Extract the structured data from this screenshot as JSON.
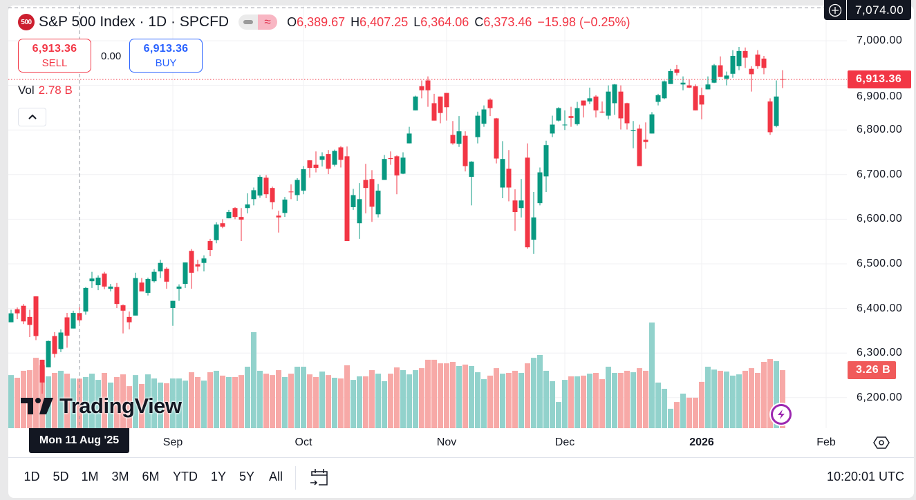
{
  "header": {
    "logo_text": "500",
    "title": "S&P 500 Index · 1D · SPCFD",
    "ohlc": [
      {
        "key": "O",
        "value": "6,389.67"
      },
      {
        "key": "H",
        "value": "6,407.25"
      },
      {
        "key": "L",
        "value": "6,364.06"
      },
      {
        "key": "C",
        "value": "6,373.46"
      }
    ],
    "change": "−15.98 (−0.25%)"
  },
  "trade": {
    "sell_price": "6,913.36",
    "sell_label": "SELL",
    "spread": "0.00",
    "buy_price": "6,913.36",
    "buy_label": "BUY"
  },
  "volume_legend": {
    "label": "Vol",
    "value": "2.78 B"
  },
  "price_axis": {
    "labels": [
      "7,000.00",
      "6,900.00",
      "6,800.00",
      "6,700.00",
      "6,600.00",
      "6,500.00",
      "6,400.00",
      "6,300.00",
      "6,200.00"
    ],
    "last_price_tag": "6,913.36",
    "volume_tag": "3.26 B",
    "crosshair_price": "7,074.00"
  },
  "time_axis": {
    "labels": [
      {
        "text": "Sep",
        "index": 26,
        "bold": false
      },
      {
        "text": "Oct",
        "index": 47,
        "bold": false
      },
      {
        "text": "Nov",
        "index": 70,
        "bold": false
      },
      {
        "text": "Dec",
        "index": 89,
        "bold": false
      },
      {
        "text": "2026",
        "index": 111,
        "bold": true
      },
      {
        "text": "Feb",
        "index": 131,
        "bold": false
      }
    ],
    "crosshair_date": "Mon 11 Aug '25",
    "crosshair_index": 11
  },
  "bottom_bar": {
    "ranges": [
      "1D",
      "5D",
      "1M",
      "3M",
      "6M",
      "YTD",
      "1Y",
      "5Y",
      "All"
    ],
    "clock": "10:20:01 UTC"
  },
  "watermark": "TradingView",
  "colors": {
    "up": "#089981",
    "down": "#f23645",
    "vol_up": "#92d2cc",
    "vol_down": "#f7a9a7",
    "grid": "#f0f0f3"
  },
  "chart_data": {
    "type": "candlestick",
    "symbol": "S&P 500 Index",
    "interval": "1D",
    "ylim": [
      6140,
      7074
    ],
    "grid": true,
    "candles_ohlc": [
      [
        6369,
        6397,
        6369,
        6389
      ],
      [
        6398,
        6402,
        6376,
        6389
      ],
      [
        6406,
        6410,
        6365,
        6371
      ],
      [
        6381,
        6397,
        6336,
        6363
      ],
      [
        6427,
        6427,
        6329,
        6338
      ],
      [
        6285,
        6285,
        6209,
        6234
      ],
      [
        6268,
        6328,
        6268,
        6327
      ],
      [
        6338,
        6347,
        6290,
        6298
      ],
      [
        6309,
        6353,
        6302,
        6346
      ],
      [
        6380,
        6390,
        6312,
        6339
      ],
      [
        6355,
        6395,
        6355,
        6390
      ],
      [
        6389.67,
        6407.25,
        6364.06,
        6373.46
      ],
      [
        6393,
        6448,
        6386,
        6446
      ],
      [
        6461,
        6482,
        6446,
        6467
      ],
      [
        6452,
        6474,
        6441,
        6469
      ],
      [
        6478,
        6482,
        6443,
        6449
      ],
      [
        6444,
        6455,
        6438,
        6449
      ],
      [
        6448,
        6457,
        6401,
        6410
      ],
      [
        6407,
        6409,
        6344,
        6395
      ],
      [
        6381,
        6393,
        6353,
        6369
      ],
      [
        6384,
        6480,
        6384,
        6468
      ],
      [
        6458,
        6468,
        6438,
        6438
      ],
      [
        6435,
        6469,
        6429,
        6466
      ],
      [
        6461,
        6488,
        6458,
        6482
      ],
      [
        6483,
        6509,
        6468,
        6502
      ],
      [
        6489,
        6492,
        6444,
        6460
      ],
      [
        6401,
        6417,
        6361,
        6417
      ],
      [
        6444,
        6454,
        6417,
        6449
      ],
      [
        6455,
        6503,
        6446,
        6503
      ],
      [
        6529,
        6533,
        6444,
        6480
      ],
      [
        6499,
        6509,
        6483,
        6494
      ],
      [
        6502,
        6519,
        6483,
        6512
      ],
      [
        6551,
        6556,
        6517,
        6531
      ],
      [
        6553,
        6593,
        6546,
        6588
      ],
      [
        6591,
        6600,
        6580,
        6583
      ],
      [
        6602,
        6621,
        6602,
        6616
      ],
      [
        6625,
        6627,
        6600,
        6605
      ],
      [
        6605,
        6625,
        6551,
        6599
      ],
      [
        6625,
        6658,
        6613,
        6633
      ],
      [
        6645,
        6671,
        6631,
        6665
      ],
      [
        6653,
        6699,
        6648,
        6695
      ],
      [
        6693,
        6699,
        6647,
        6656
      ],
      [
        6670,
        6673,
        6622,
        6638
      ],
      [
        6608,
        6619,
        6570,
        6604
      ],
      [
        6614,
        6650,
        6605,
        6644
      ],
      [
        6662,
        6678,
        6645,
        6661
      ],
      [
        6654,
        6692,
        6641,
        6688
      ],
      [
        6664,
        6719,
        6656,
        6712
      ],
      [
        6732,
        6732,
        6693,
        6715
      ],
      [
        6722,
        6752,
        6705,
        6715
      ],
      [
        6733,
        6750,
        6718,
        6741
      ],
      [
        6746,
        6755,
        6701,
        6713
      ],
      [
        6722,
        6756,
        6718,
        6753
      ],
      [
        6761,
        6764,
        6716,
        6733
      ],
      [
        6741,
        6763,
        6551,
        6551
      ],
      [
        6627,
        6668,
        6621,
        6654
      ],
      [
        6591,
        6681,
        6556,
        6645
      ],
      [
        6688,
        6724,
        6613,
        6670
      ],
      [
        6690,
        6710,
        6594,
        6628
      ],
      [
        6611,
        6679,
        6604,
        6664
      ],
      [
        6688,
        6744,
        6688,
        6735
      ],
      [
        6737,
        6752,
        6722,
        6735
      ],
      [
        6741,
        6743,
        6656,
        6698
      ],
      [
        6702,
        6750,
        6701,
        6738
      ],
      [
        6770,
        6807,
        6770,
        6792
      ],
      [
        6844,
        6877,
        6844,
        6875
      ],
      [
        6898,
        6911,
        6871,
        6889
      ],
      [
        6911,
        6920,
        6852,
        6889
      ],
      [
        6860,
        6881,
        6821,
        6821
      ],
      [
        6875,
        6875,
        6815,
        6838
      ],
      [
        6883,
        6883,
        6821,
        6851
      ],
      [
        6789,
        6820,
        6767,
        6770
      ],
      [
        6769,
        6831,
        6762,
        6797
      ],
      [
        6787,
        6797,
        6707,
        6719
      ],
      [
        6695,
        6730,
        6631,
        6729
      ],
      [
        6784,
        6841,
        6770,
        6832
      ],
      [
        6814,
        6855,
        6807,
        6846
      ],
      [
        6868,
        6871,
        6831,
        6849
      ],
      [
        6826,
        6827,
        6725,
        6736
      ],
      [
        6671,
        6775,
        6647,
        6735
      ],
      [
        6713,
        6755,
        6640,
        6671
      ],
      [
        6642,
        6667,
        6574,
        6616
      ],
      [
        6625,
        6690,
        6604,
        6642
      ],
      [
        6738,
        6770,
        6534,
        6537
      ],
      [
        6554,
        6661,
        6522,
        6604
      ],
      [
        6636,
        6716,
        6631,
        6705
      ],
      [
        6696,
        6776,
        6661,
        6766
      ],
      [
        6792,
        6832,
        6784,
        6812
      ],
      [
        6821,
        6851,
        6819,
        6849
      ],
      [
        6811,
        6844,
        6800,
        6812
      ],
      [
        6831,
        6852,
        6807,
        6827
      ],
      [
        6813,
        6863,
        6810,
        6849
      ],
      [
        6866,
        6866,
        6828,
        6855
      ],
      [
        6864,
        6895,
        6858,
        6871
      ],
      [
        6875,
        6878,
        6828,
        6844
      ],
      [
        6841,
        6864,
        6838,
        6840
      ],
      [
        6832,
        6900,
        6824,
        6886
      ],
      [
        6860,
        6903,
        6834,
        6902
      ],
      [
        6886,
        6900,
        6801,
        6826
      ],
      [
        6860,
        6861,
        6801,
        6815
      ],
      [
        6798,
        6820,
        6759,
        6800
      ],
      [
        6803,
        6812,
        6719,
        6719
      ],
      [
        6778,
        6817,
        6758,
        6773
      ],
      [
        6792,
        6840,
        6792,
        6835
      ],
      [
        6863,
        6881,
        6855,
        6878
      ],
      [
        6871,
        6911,
        6869,
        6909
      ],
      [
        6903,
        6937,
        6903,
        6932
      ],
      [
        6936,
        6946,
        6922,
        6928
      ],
      [
        6902,
        6920,
        6889,
        6906
      ],
      [
        6900,
        6914,
        6894,
        6895
      ],
      [
        6898,
        6902,
        6844,
        6844
      ],
      [
        6878,
        6895,
        6824,
        6857
      ],
      [
        6891,
        6920,
        6891,
        6902
      ],
      [
        6906,
        6948,
        6905,
        6945
      ],
      [
        6945,
        6965,
        6919,
        6919
      ],
      [
        6915,
        6931,
        6900,
        6922
      ],
      [
        6926,
        6979,
        6917,
        6966
      ],
      [
        6943,
        6986,
        6934,
        6977
      ],
      [
        6977,
        6985,
        6939,
        6962
      ],
      [
        6937,
        6943,
        6886,
        6925
      ],
      [
        6969,
        6979,
        6937,
        6943
      ],
      [
        6960,
        6966,
        6925,
        6939
      ],
      [
        6864,
        6871,
        6789,
        6795
      ],
      [
        6809,
        6911,
        6806,
        6875
      ],
      [
        6914,
        6934,
        6894,
        6913.36
      ]
    ],
    "volume_billions": [
      2.98,
      2.83,
      3.22,
      3.26,
      3.95,
      3.53,
      2.91,
      3.1,
      3.22,
      3.06,
      2.79,
      2.78,
      2.87,
      3.06,
      2.71,
      3.1,
      2.56,
      2.87,
      3.02,
      2.36,
      2.98,
      2.48,
      3.02,
      2.79,
      2.56,
      2.52,
      2.79,
      2.79,
      2.67,
      3.14,
      2.87,
      2.67,
      3.14,
      3.22,
      2.95,
      2.87,
      2.87,
      2.98,
      3.45,
      5.39,
      3.22,
      3.06,
      2.98,
      3.26,
      2.87,
      3.06,
      3.45,
      3.45,
      3.02,
      2.87,
      3.18,
      2.98,
      2.83,
      2.79,
      3.53,
      2.71,
      2.91,
      2.91,
      3.26,
      3.06,
      2.64,
      3.06,
      3.41,
      3.26,
      3.02,
      3.26,
      3.37,
      3.84,
      3.84,
      3.64,
      3.64,
      3.72,
      3.49,
      3.57,
      3.49,
      3.14,
      2.75,
      2.95,
      3.37,
      3.06,
      3.1,
      3.22,
      3.1,
      3.64,
      3.95,
      4.11,
      3.22,
      2.64,
      1.47,
      2.71,
      2.91,
      2.91,
      2.95,
      3.06,
      3.1,
      2.75,
      3.45,
      3.1,
      3.1,
      3.22,
      3.14,
      3.37,
      3.22,
      5.93,
      2.56,
      2.21,
      1.09,
      1.47,
      1.94,
      1.71,
      1.71,
      2.6,
      3.45,
      3.29,
      3.22,
      3.18,
      2.95,
      3.02,
      3.22,
      3.37,
      3.1,
      3.72,
      3.88,
      3.76,
      3.26
    ],
    "last_price": 6913.36,
    "crosshair_price": 7074
  }
}
